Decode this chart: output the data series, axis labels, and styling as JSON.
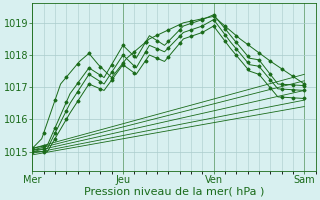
{
  "background_color": "#d8f0f0",
  "plot_bg_color": "#d8f0f0",
  "line_color": "#1a6b1a",
  "grid_color": "#aacccc",
  "vgrid_color": "#aacccc",
  "ylabel_values": [
    1015,
    1016,
    1017,
    1018,
    1019
  ],
  "xlabel": "Pression niveau de la mer( hPa )",
  "x_ticks": [
    0,
    48,
    96,
    144
  ],
  "x_tick_labels": [
    "Mer",
    "Jeu",
    "Ven",
    "Sam"
  ],
  "xlim": [
    0,
    150
  ],
  "ylim": [
    1014.4,
    1019.6
  ],
  "xlabel_fontsize": 8,
  "tick_fontsize": 7
}
